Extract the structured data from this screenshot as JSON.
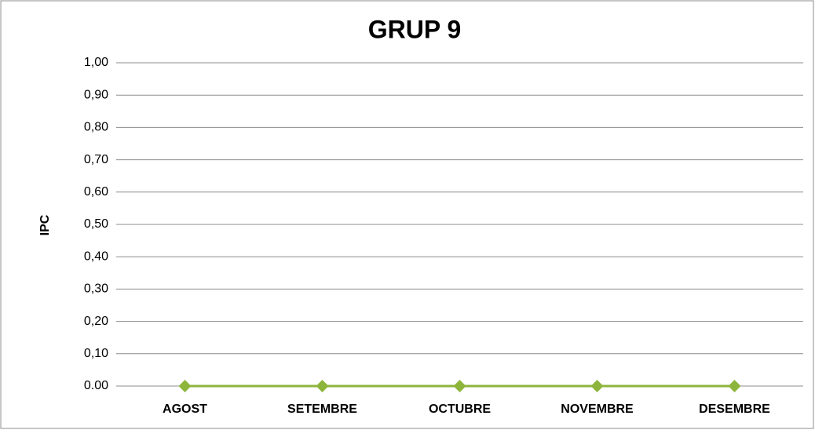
{
  "chart_data": {
    "type": "line",
    "title": "GRUP 9",
    "ylabel": "IPC",
    "categories": [
      "AGOST",
      "SETEMBRE",
      "OCTUBRE",
      "NOVEMBRE",
      "DESEMBRE"
    ],
    "series": [
      {
        "name": "GRUP 9",
        "color": "#8db53c",
        "values": [
          0,
          0,
          0,
          0,
          0
        ]
      }
    ],
    "ylim": [
      0,
      1
    ],
    "yticks": [
      {
        "value": 0,
        "label": "0.00"
      },
      {
        "value": 0.1,
        "label": "0,10"
      },
      {
        "value": 0.2,
        "label": "0,20"
      },
      {
        "value": 0.3,
        "label": "0,30"
      },
      {
        "value": 0.4,
        "label": "0,40"
      },
      {
        "value": 0.5,
        "label": "0,50"
      },
      {
        "value": 0.6,
        "label": "0,60"
      },
      {
        "value": 0.7,
        "label": "0,70"
      },
      {
        "value": 0.8,
        "label": "0,80"
      },
      {
        "value": 0.9,
        "label": "0,90"
      },
      {
        "value": 1,
        "label": "1,00"
      }
    ],
    "grid": true
  }
}
